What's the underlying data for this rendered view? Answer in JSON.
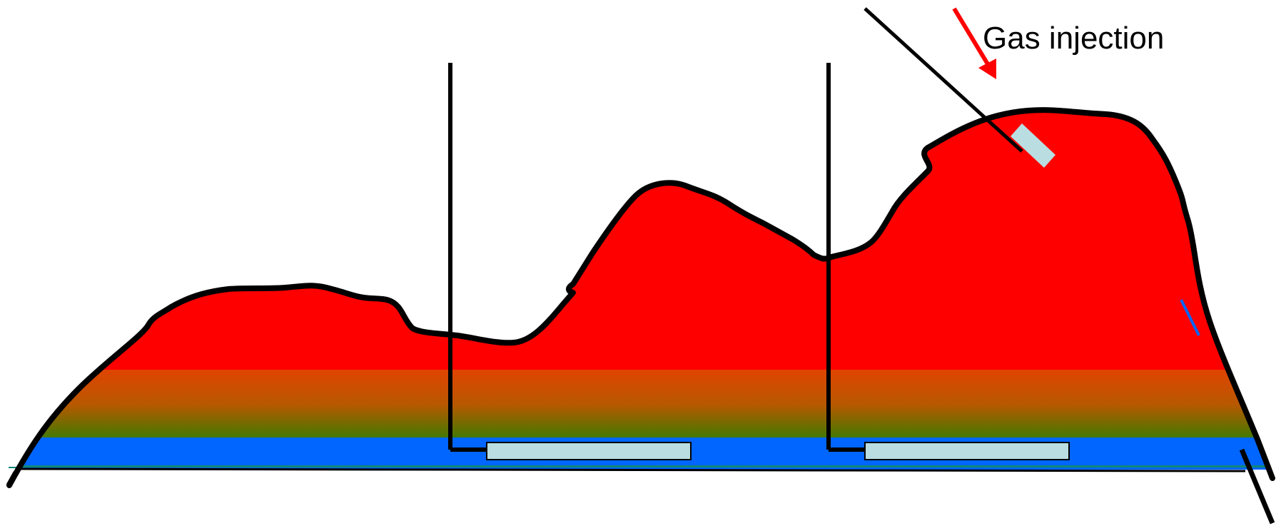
{
  "annotations": {
    "gas_injection_label": "Gas injection"
  },
  "colors": {
    "gas_zone": "#ff0000",
    "transition_top": "#e04400",
    "transition_bottom": "#3f7a00",
    "water_zone": "#0066ff",
    "outline": "#000000",
    "injection_arrow": "#ff0000",
    "completion": "#b9dde1",
    "baseline": "#118877"
  }
}
